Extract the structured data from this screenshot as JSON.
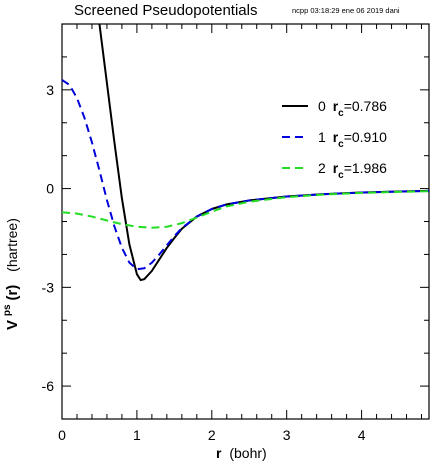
{
  "header": {
    "title": "Screened Pseudopotentials",
    "subtitle": "ncpp 03:18:29 ene 06 2019 dani"
  },
  "chart_data": {
    "type": "line",
    "xlabel": "r (bohr)",
    "xlabel_parts": {
      "main": "r",
      "unit": "(bohr)"
    },
    "ylabel": "Vps(r) (hartree)",
    "ylabel_parts": {
      "main": "V",
      "sup": "ps",
      "arg": "(r)",
      "unit": "(hartree)"
    },
    "xlim": [
      0,
      4.9
    ],
    "ylim": [
      -7.0,
      5.0
    ],
    "xticks": [
      0,
      1,
      2,
      3,
      4
    ],
    "xtick_labels": [
      "0",
      "1",
      "2",
      "3",
      "4"
    ],
    "yticks": [
      3,
      0,
      -3,
      -6
    ],
    "ytick_labels": [
      "3",
      "0",
      "-3",
      "-6"
    ],
    "grid": false,
    "legend_position": "top-right",
    "series": [
      {
        "name": "0 rc=0.786",
        "legend": {
          "prefix": "0 ",
          "sym": "r",
          "sub": "c",
          "value": "=0.786"
        },
        "color": "#000000",
        "dash": "solid",
        "x": [
          0.5,
          0.6,
          0.7,
          0.8,
          0.9,
          1.0,
          1.05,
          1.1,
          1.2,
          1.3,
          1.4,
          1.5,
          1.6,
          1.8,
          2.0,
          2.2,
          2.5,
          3.0,
          3.5,
          4.0,
          4.5,
          4.9
        ],
        "y": [
          5.0,
          3.2,
          1.4,
          -0.3,
          -1.7,
          -2.6,
          -2.78,
          -2.75,
          -2.5,
          -2.15,
          -1.8,
          -1.5,
          -1.22,
          -0.85,
          -0.62,
          -0.48,
          -0.36,
          -0.24,
          -0.17,
          -0.12,
          -0.09,
          -0.07
        ]
      },
      {
        "name": "1 rc=0.910",
        "legend": {
          "prefix": "1 ",
          "sym": "r",
          "sub": "c",
          "value": "=0.910"
        },
        "color": "#0000dd",
        "dash": "dashed",
        "x": [
          0.0,
          0.1,
          0.2,
          0.3,
          0.4,
          0.5,
          0.6,
          0.7,
          0.8,
          0.9,
          1.0,
          1.1,
          1.2,
          1.3,
          1.4,
          1.5,
          1.6,
          1.8,
          2.0,
          2.2,
          2.5,
          3.0,
          3.5,
          4.0,
          4.5,
          4.9
        ],
        "y": [
          3.3,
          3.15,
          2.75,
          2.15,
          1.4,
          0.55,
          -0.35,
          -1.15,
          -1.8,
          -2.25,
          -2.45,
          -2.42,
          -2.25,
          -2.0,
          -1.72,
          -1.45,
          -1.2,
          -0.85,
          -0.62,
          -0.48,
          -0.36,
          -0.24,
          -0.17,
          -0.12,
          -0.09,
          -0.07
        ]
      },
      {
        "name": "2 rc=1.986",
        "legend": {
          "prefix": "2 ",
          "sym": "r",
          "sub": "c",
          "value": "=1.986"
        },
        "color": "#22dd22",
        "dash": "dashed",
        "x": [
          0.0,
          0.2,
          0.4,
          0.6,
          0.8,
          1.0,
          1.2,
          1.4,
          1.6,
          1.8,
          2.0,
          2.2,
          2.5,
          3.0,
          3.5,
          4.0,
          4.5,
          4.9
        ],
        "y": [
          -0.72,
          -0.76,
          -0.85,
          -0.97,
          -1.08,
          -1.16,
          -1.19,
          -1.16,
          -1.05,
          -0.88,
          -0.7,
          -0.54,
          -0.4,
          -0.26,
          -0.18,
          -0.13,
          -0.1,
          -0.08
        ]
      }
    ]
  }
}
